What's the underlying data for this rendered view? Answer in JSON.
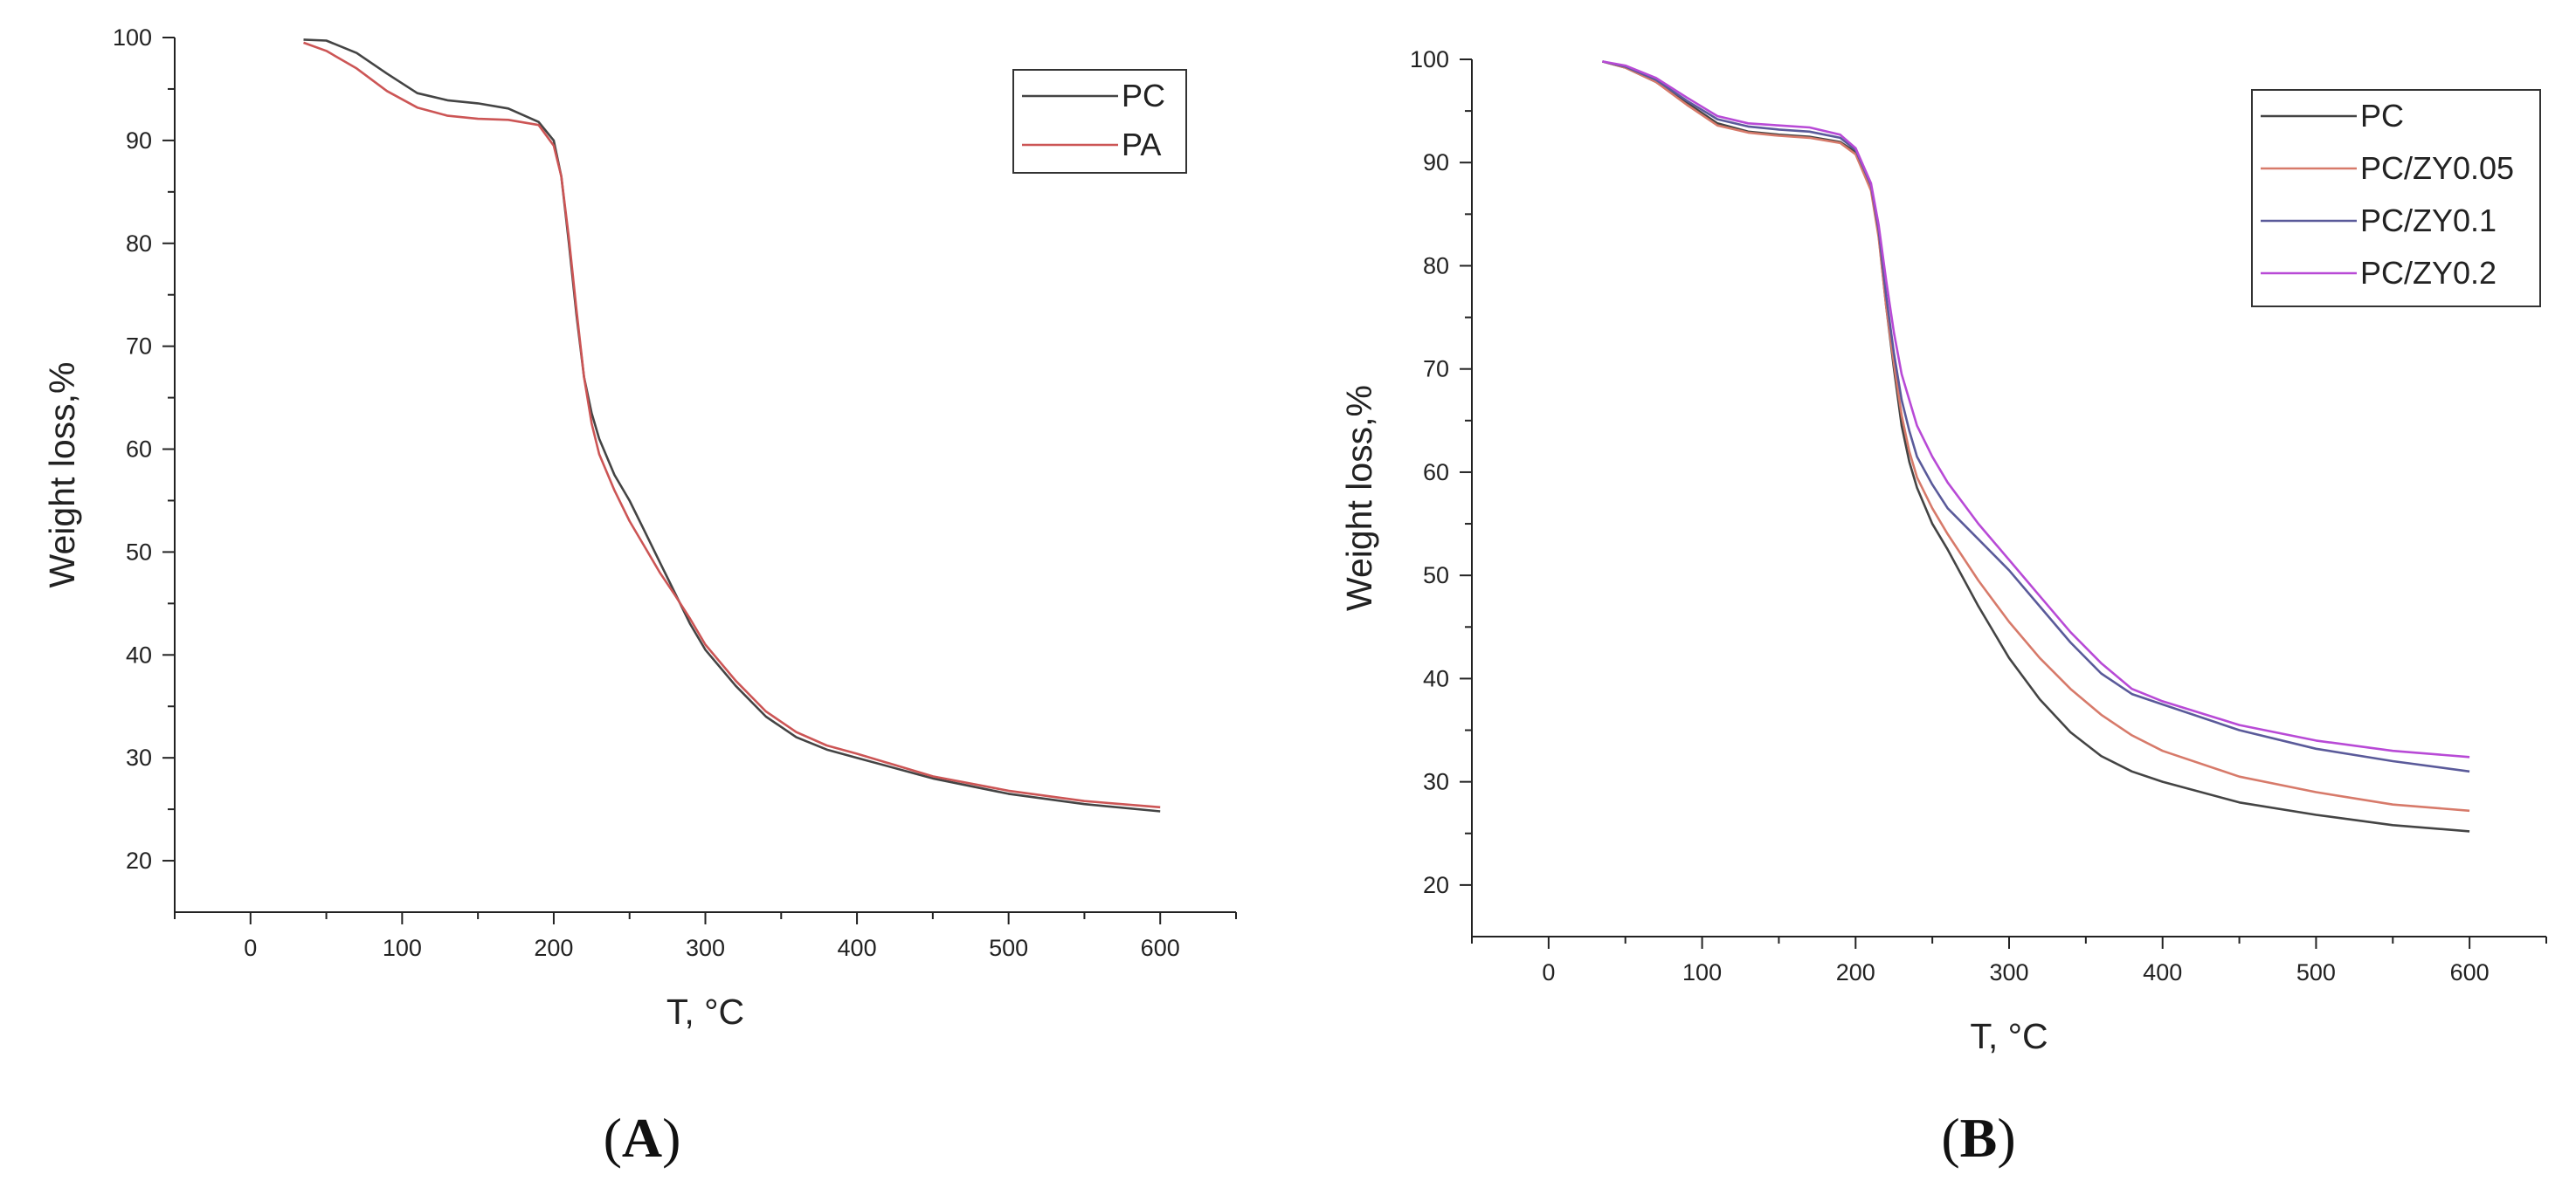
{
  "chart_data": [
    {
      "panel_label": "A",
      "type": "line",
      "xlabel": "T, °C",
      "ylabel": "Weight loss,%",
      "xlim": [
        -50,
        650
      ],
      "ylim": [
        15,
        100
      ],
      "xticks": [
        0,
        100,
        200,
        300,
        400,
        500,
        600
      ],
      "yticks": [
        20,
        30,
        40,
        50,
        60,
        70,
        80,
        90,
        100
      ],
      "grid": false,
      "legend_position": "top-right",
      "series": [
        {
          "name": "PC",
          "color": "#444444",
          "x": [
            35,
            50,
            70,
            90,
            110,
            130,
            150,
            170,
            190,
            200,
            205,
            210,
            215,
            220,
            225,
            230,
            240,
            250,
            260,
            270,
            280,
            290,
            300,
            320,
            340,
            360,
            380,
            400,
            450,
            500,
            550,
            600
          ],
          "y": [
            99.8,
            99.7,
            98.5,
            96.5,
            94.6,
            93.9,
            93.6,
            93.1,
            91.8,
            90.0,
            86.5,
            80.0,
            73.0,
            67.0,
            63.5,
            61.0,
            57.5,
            55.0,
            52.0,
            49.0,
            46.0,
            43.0,
            40.5,
            37.0,
            34.0,
            32.0,
            30.8,
            30.0,
            28.0,
            26.5,
            25.5,
            24.8
          ]
        },
        {
          "name": "PA",
          "color": "#cc5555",
          "x": [
            35,
            50,
            70,
            90,
            110,
            130,
            150,
            170,
            190,
            200,
            205,
            210,
            215,
            220,
            225,
            230,
            240,
            250,
            260,
            270,
            280,
            290,
            300,
            320,
            340,
            360,
            380,
            400,
            450,
            500,
            550,
            600
          ],
          "y": [
            99.5,
            98.7,
            97.0,
            94.8,
            93.2,
            92.4,
            92.1,
            92.0,
            91.5,
            89.5,
            86.5,
            80.5,
            73.5,
            67.0,
            62.5,
            59.5,
            56.0,
            53.0,
            50.5,
            48.0,
            45.8,
            43.5,
            41.0,
            37.5,
            34.5,
            32.5,
            31.2,
            30.4,
            28.2,
            26.8,
            25.8,
            25.2
          ]
        }
      ]
    },
    {
      "panel_label": "B",
      "type": "line",
      "xlabel": "T, °C",
      "ylabel": "Weight loss,%",
      "xlim": [
        -50,
        650
      ],
      "ylim": [
        15,
        100
      ],
      "xticks": [
        0,
        100,
        200,
        300,
        400,
        500,
        600
      ],
      "yticks": [
        20,
        30,
        40,
        50,
        60,
        70,
        80,
        90,
        100
      ],
      "grid": false,
      "legend_position": "top-right",
      "series": [
        {
          "name": "PC",
          "color": "#444444",
          "x": [
            35,
            50,
            70,
            90,
            110,
            130,
            150,
            170,
            190,
            200,
            210,
            215,
            220,
            225,
            230,
            235,
            240,
            250,
            260,
            280,
            300,
            320,
            340,
            360,
            380,
            400,
            450,
            500,
            550,
            600
          ],
          "y": [
            99.8,
            99.2,
            97.8,
            95.8,
            93.8,
            93.0,
            92.7,
            92.5,
            92.0,
            91.0,
            87.5,
            83.0,
            76.0,
            70.0,
            64.5,
            61.0,
            58.5,
            55.0,
            52.5,
            47.0,
            42.0,
            38.0,
            34.8,
            32.5,
            31.0,
            30.0,
            28.0,
            26.8,
            25.8,
            25.2
          ]
        },
        {
          "name": "PC/ZY0.05",
          "color": "#d77a6a",
          "x": [
            35,
            50,
            70,
            90,
            110,
            130,
            150,
            170,
            190,
            200,
            210,
            215,
            220,
            225,
            230,
            235,
            240,
            250,
            260,
            280,
            300,
            320,
            340,
            360,
            380,
            400,
            450,
            500,
            550,
            600
          ],
          "y": [
            99.8,
            99.2,
            97.8,
            95.6,
            93.6,
            92.9,
            92.6,
            92.4,
            91.9,
            90.8,
            87.3,
            82.8,
            76.0,
            70.5,
            65.5,
            62.0,
            59.5,
            56.5,
            54.0,
            49.5,
            45.5,
            42.0,
            39.0,
            36.5,
            34.5,
            33.0,
            30.5,
            29.0,
            27.8,
            27.2
          ]
        },
        {
          "name": "PC/ZY0.1",
          "color": "#5a5a9a",
          "x": [
            35,
            50,
            70,
            90,
            110,
            130,
            150,
            170,
            190,
            200,
            210,
            215,
            220,
            225,
            230,
            235,
            240,
            250,
            260,
            280,
            300,
            320,
            340,
            360,
            380,
            400,
            450,
            500,
            550,
            600
          ],
          "y": [
            99.8,
            99.3,
            98.0,
            96.0,
            94.2,
            93.5,
            93.2,
            93.0,
            92.4,
            91.2,
            87.8,
            83.5,
            77.0,
            71.5,
            67.0,
            64.0,
            61.5,
            58.8,
            56.5,
            53.5,
            50.5,
            47.0,
            43.5,
            40.5,
            38.5,
            37.5,
            35.0,
            33.2,
            32.0,
            31.0
          ]
        },
        {
          "name": "PC/ZY0.2",
          "color": "#b84ad6",
          "x": [
            35,
            50,
            70,
            90,
            110,
            130,
            150,
            170,
            190,
            200,
            210,
            215,
            220,
            225,
            230,
            235,
            240,
            250,
            260,
            280,
            300,
            320,
            340,
            360,
            380,
            400,
            450,
            500,
            550,
            600
          ],
          "y": [
            99.8,
            99.4,
            98.2,
            96.3,
            94.5,
            93.8,
            93.6,
            93.4,
            92.7,
            91.4,
            88.0,
            84.0,
            78.5,
            73.5,
            69.5,
            67.0,
            64.5,
            61.5,
            59.0,
            55.0,
            51.5,
            48.0,
            44.5,
            41.5,
            39.0,
            37.8,
            35.5,
            34.0,
            33.0,
            32.4
          ]
        }
      ]
    }
  ]
}
